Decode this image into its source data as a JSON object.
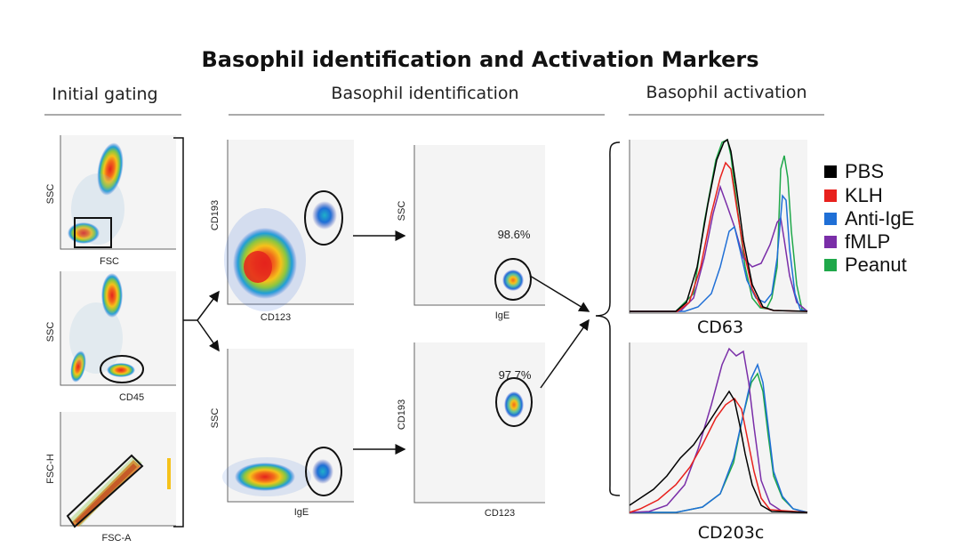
{
  "title": "Basophil identification and Activation Markers",
  "sections": {
    "initial_gating": "Initial gating",
    "basophil_identification": "Basophil identification",
    "basophil_activation": "Basophil activation"
  },
  "gating_plots": {
    "p1": {
      "ylabel": "SSC",
      "xlabel": "FSC"
    },
    "p2": {
      "ylabel": "SSC",
      "xlabel": "CD45"
    },
    "p3": {
      "ylabel": "FSC-H",
      "xlabel": "FSC-A"
    }
  },
  "identification_plots": {
    "a": {
      "ylabel": "CD193",
      "xlabel": "CD123"
    },
    "b": {
      "ylabel": "SSC",
      "xlabel": "IgE",
      "percent": "98.6%"
    },
    "c": {
      "ylabel": "SSC",
      "xlabel": "IgE"
    },
    "d": {
      "ylabel": "CD193",
      "xlabel": "CD123",
      "percent": "97.7%"
    }
  },
  "activation": {
    "top_xlabel": "CD63",
    "bottom_xlabel": "CD203c"
  },
  "legend": [
    {
      "label": "PBS",
      "color": "#000000"
    },
    {
      "label": "KLH",
      "color": "#e8211d"
    },
    {
      "label": "Anti-IgE",
      "color": "#1f6fd6"
    },
    {
      "label": "fMLP",
      "color": "#7a2ea8"
    },
    {
      "label": "Peanut",
      "color": "#1fa84a"
    }
  ]
}
